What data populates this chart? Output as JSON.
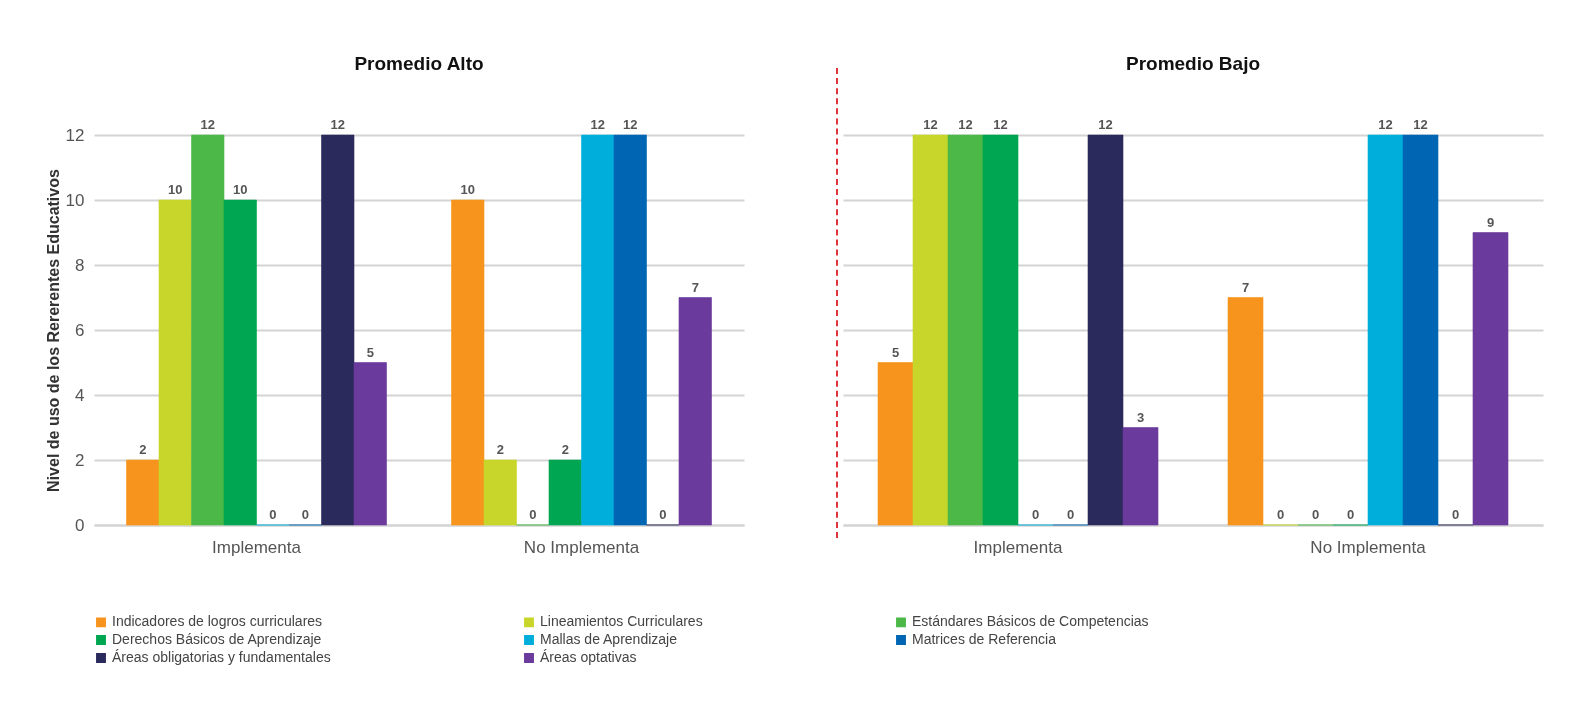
{
  "chart_data": [
    {
      "type": "bar",
      "title": "Promedio Alto",
      "ylabel": "Nivel de uso de los Rererentes Educativos",
      "categories": [
        "Implementa",
        "No Implementa"
      ],
      "ylim": [
        0,
        12
      ],
      "yticks": [
        0,
        2,
        4,
        6,
        8,
        10,
        12
      ],
      "grid": "y",
      "legend": "bottom",
      "data_labels": true,
      "series": [
        {
          "name": "Indicadores de logros curriculares",
          "color": "#f7941d",
          "values": [
            2,
            10
          ]
        },
        {
          "name": "Lineamientos Curriculares",
          "color": "#c8d62b",
          "values": [
            10,
            2
          ]
        },
        {
          "name": "Estándares Básicos de Competencias",
          "color": "#4cb848",
          "values": [
            12,
            0
          ]
        },
        {
          "name": "Derechos Básicos de Aprendizaje",
          "color": "#00a651",
          "values": [
            10,
            2
          ]
        },
        {
          "name": "Mallas de Aprendizaje",
          "color": "#00aedb",
          "values": [
            0,
            12
          ]
        },
        {
          "name": "Matrices de Referencia",
          "color": "#0066b3",
          "values": [
            0,
            12
          ]
        },
        {
          "name": "Áreas obligatorias y fundamentales",
          "color": "#2b2a5c",
          "values": [
            12,
            0
          ]
        },
        {
          "name": "Áreas optativas",
          "color": "#6a3a9c",
          "values": [
            5,
            7
          ]
        }
      ]
    },
    {
      "type": "bar",
      "title": "Promedio Bajo",
      "categories": [
        "Implementa",
        "No Implementa"
      ],
      "ylim": [
        0,
        12
      ],
      "yticks": [
        0,
        2,
        4,
        6,
        8,
        10,
        12
      ],
      "grid": "y",
      "tick_labels": "x",
      "data_labels": true,
      "series": [
        {
          "color": "#f7941d",
          "values": [
            5,
            7
          ]
        },
        {
          "color": "#c8d62b",
          "values": [
            12,
            0
          ]
        },
        {
          "color": "#4cb848",
          "values": [
            12,
            0
          ]
        },
        {
          "color": "#00a651",
          "values": [
            12,
            0
          ]
        },
        {
          "color": "#00aedb",
          "values": [
            0,
            12
          ]
        },
        {
          "color": "#0066b3",
          "values": [
            0,
            12
          ]
        },
        {
          "color": "#2b2a5c",
          "values": [
            12,
            0
          ]
        },
        {
          "color": "#6a3a9c",
          "values": [
            3,
            9
          ]
        }
      ]
    }
  ]
}
